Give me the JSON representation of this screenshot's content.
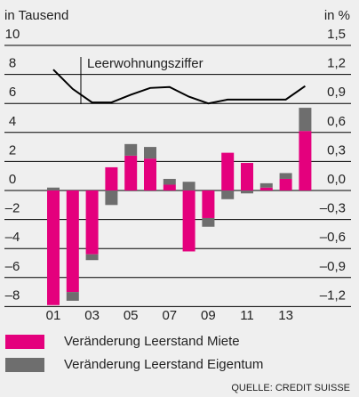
{
  "chart_data": {
    "type": "bar",
    "stacked": true,
    "y_axis_label": "in Tausend",
    "y2_axis_label": "in %",
    "categories": [
      "01",
      null,
      "03",
      null,
      "05",
      null,
      "07",
      null,
      "09",
      null,
      "11",
      null,
      "13",
      null
    ],
    "series": [
      {
        "name": "Veränderung Leerstand Miete",
        "color": "#e4007d",
        "values": [
          -7.9,
          -7.0,
          -4.4,
          1.6,
          2.4,
          2.2,
          0.4,
          -4.2,
          -1.9,
          2.6,
          1.9,
          0.2,
          0.8,
          4.1
        ]
      },
      {
        "name": "Veränderung Leerstand Eigentum",
        "color": "#6e6e6e",
        "values": [
          0.2,
          -0.6,
          -0.4,
          -1.0,
          0.8,
          0.8,
          0.4,
          0.6,
          -0.6,
          -0.6,
          -0.2,
          0.3,
          0.4,
          1.6
        ]
      }
    ],
    "line": {
      "label": "Leerwohnungsziffer",
      "color": "#000000",
      "axis": "y2",
      "values": [
        1.25,
        1.05,
        0.91,
        0.91,
        0.99,
        1.06,
        1.07,
        0.97,
        0.9,
        0.94,
        0.94,
        0.94,
        0.94,
        1.08
      ]
    },
    "ylim": [
      -8,
      10
    ],
    "yticks": [
      10,
      8,
      6,
      4,
      2,
      0,
      {
        "value": -2,
        "label": "–2"
      },
      {
        "value": -4,
        "label": "–4"
      },
      {
        "value": -6,
        "label": "–6"
      },
      {
        "value": -8,
        "label": "–8"
      }
    ],
    "y2lim": [
      -1.2,
      1.5
    ],
    "y2ticks": [
      {
        "value": 1.5,
        "label": "1,5"
      },
      {
        "value": 1.2,
        "label": "1,2"
      },
      {
        "value": 0.9,
        "label": "0,9"
      },
      {
        "value": 0.6,
        "label": "0,6"
      },
      {
        "value": 0.3,
        "label": "0,3"
      },
      {
        "value": 0.0,
        "label": "0,0"
      },
      {
        "value": -0.3,
        "label": "–0,3"
      },
      {
        "value": -0.6,
        "label": "–0,6"
      },
      {
        "value": -0.9,
        "label": "–0,9"
      },
      {
        "value": -1.2,
        "label": "–1,2"
      }
    ],
    "grid": true,
    "source": "QUELLE: CREDIT SUISSE"
  }
}
